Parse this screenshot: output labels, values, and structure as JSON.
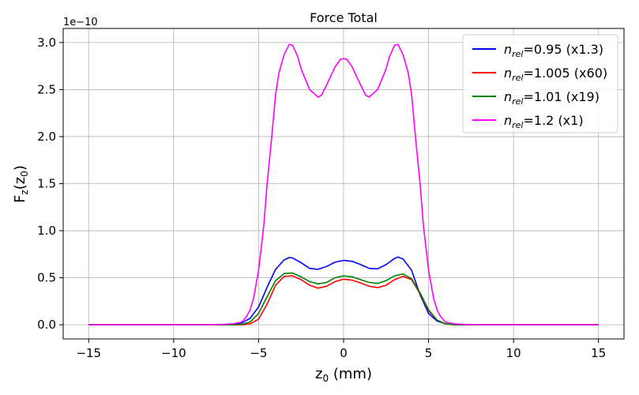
{
  "chart_data": {
    "type": "line",
    "title": "Force Total",
    "xlabel": "z₀ (mm)",
    "ylabel": "F_z(z₀)",
    "y_scale_label": "1e−10",
    "xlim": [
      -16.5,
      16.5
    ],
    "ylim": [
      -0.15,
      3.15
    ],
    "xticks": [
      -15,
      -10,
      -5,
      0,
      5,
      10,
      15
    ],
    "xtick_labels": [
      "−15",
      "−10",
      "−5",
      "0",
      "5",
      "10",
      "15"
    ],
    "yticks": [
      0.0,
      0.5,
      1.0,
      1.5,
      2.0,
      2.5,
      3.0
    ],
    "ytick_labels": [
      "0.0",
      "0.5",
      "1.0",
      "1.5",
      "2.0",
      "2.5",
      "3.0"
    ],
    "grid": true,
    "legend_position": "top-right",
    "series": [
      {
        "name": "n_rel=0.95 (x1.3)",
        "legend_base": "n",
        "legend_sub": "rel",
        "legend_suffix": "=0.95 (x1.3)",
        "color": "#0000ff",
        "x": [
          -15,
          -8,
          -7,
          -6.5,
          -6,
          -5.5,
          -5,
          -4.5,
          -4,
          -3.5,
          -3.2,
          -3,
          -2.5,
          -2,
          -1.5,
          -1,
          -0.5,
          0,
          0.5,
          1,
          1.5,
          2,
          2.5,
          3,
          3.2,
          3.5,
          4,
          4.5,
          5,
          5.5,
          6,
          6.5,
          7,
          8,
          15
        ],
        "y": [
          0,
          0,
          0,
          0.005,
          0.02,
          0.07,
          0.19,
          0.4,
          0.59,
          0.69,
          0.715,
          0.71,
          0.66,
          0.6,
          0.59,
          0.62,
          0.665,
          0.685,
          0.675,
          0.64,
          0.6,
          0.595,
          0.64,
          0.705,
          0.72,
          0.7,
          0.58,
          0.32,
          0.12,
          0.04,
          0.01,
          0.002,
          0,
          0,
          0
        ]
      },
      {
        "name": "n_rel=1.005 (x60)",
        "legend_base": "n",
        "legend_sub": "rel",
        "legend_suffix": "=1.005 (x60)",
        "color": "#ff0000",
        "x": [
          -15,
          -8,
          -7,
          -6.5,
          -6,
          -5.5,
          -5,
          -4.5,
          -4,
          -3.5,
          -3,
          -2.5,
          -2,
          -1.5,
          -1,
          -0.5,
          0,
          0.5,
          1,
          1.5,
          2,
          2.5,
          3,
          3.5,
          4,
          4.5,
          5,
          5.5,
          6,
          6.5,
          7,
          8,
          15
        ],
        "y": [
          0,
          0,
          0,
          0,
          0,
          0.01,
          0.06,
          0.22,
          0.42,
          0.515,
          0.52,
          0.48,
          0.42,
          0.39,
          0.41,
          0.46,
          0.485,
          0.475,
          0.445,
          0.41,
          0.395,
          0.42,
          0.48,
          0.515,
          0.48,
          0.33,
          0.15,
          0.05,
          0.01,
          0,
          0,
          0,
          0
        ]
      },
      {
        "name": "n_rel=1.01 (x19)",
        "legend_base": "n",
        "legend_sub": "rel",
        "legend_suffix": "=1.01 (x19)",
        "color": "#008000",
        "x": [
          -15,
          -8,
          -7,
          -6.5,
          -6,
          -5.5,
          -5,
          -4.5,
          -4,
          -3.5,
          -3,
          -2.5,
          -2,
          -1.5,
          -1,
          -0.5,
          0,
          0.5,
          1,
          1.5,
          2,
          2.5,
          3,
          3.5,
          4,
          4.5,
          5,
          5.5,
          6,
          6.5,
          7,
          8,
          15
        ],
        "y": [
          0,
          0,
          0,
          0,
          0.005,
          0.03,
          0.12,
          0.3,
          0.47,
          0.545,
          0.55,
          0.51,
          0.46,
          0.435,
          0.45,
          0.5,
          0.52,
          0.51,
          0.48,
          0.45,
          0.44,
          0.47,
          0.52,
          0.54,
          0.49,
          0.34,
          0.16,
          0.05,
          0.01,
          0,
          0,
          0,
          0
        ]
      },
      {
        "name": "n_rel=1.2 (x1)",
        "legend_base": "n",
        "legend_sub": "rel",
        "legend_suffix": "=1.2 (x1)",
        "color": "#ff00ff",
        "x": [
          -15,
          -8,
          -7,
          -6.5,
          -6,
          -5.7,
          -5.5,
          -5.3,
          -5,
          -4.7,
          -4.5,
          -4.2,
          -4,
          -3.8,
          -3.5,
          -3.2,
          -3,
          -2.7,
          -2.5,
          -2,
          -1.5,
          -1.3,
          -1,
          -0.5,
          -0.2,
          0,
          0.2,
          0.5,
          1,
          1.3,
          1.5,
          2,
          2.5,
          2.7,
          3,
          3.2,
          3.5,
          3.8,
          4,
          4.2,
          4.5,
          4.7,
          5,
          5.3,
          5.5,
          5.7,
          6,
          6.5,
          7,
          8,
          15
        ],
        "y": [
          0,
          0,
          0.005,
          0.01,
          0.03,
          0.09,
          0.16,
          0.28,
          0.58,
          1.05,
          1.5,
          2.05,
          2.45,
          2.68,
          2.87,
          2.98,
          2.97,
          2.85,
          2.72,
          2.5,
          2.42,
          2.44,
          2.55,
          2.74,
          2.82,
          2.83,
          2.82,
          2.74,
          2.55,
          2.44,
          2.42,
          2.5,
          2.72,
          2.85,
          2.97,
          2.98,
          2.87,
          2.68,
          2.45,
          2.05,
          1.5,
          1.05,
          0.58,
          0.28,
          0.16,
          0.09,
          0.03,
          0.01,
          0.005,
          0,
          0
        ]
      }
    ]
  }
}
